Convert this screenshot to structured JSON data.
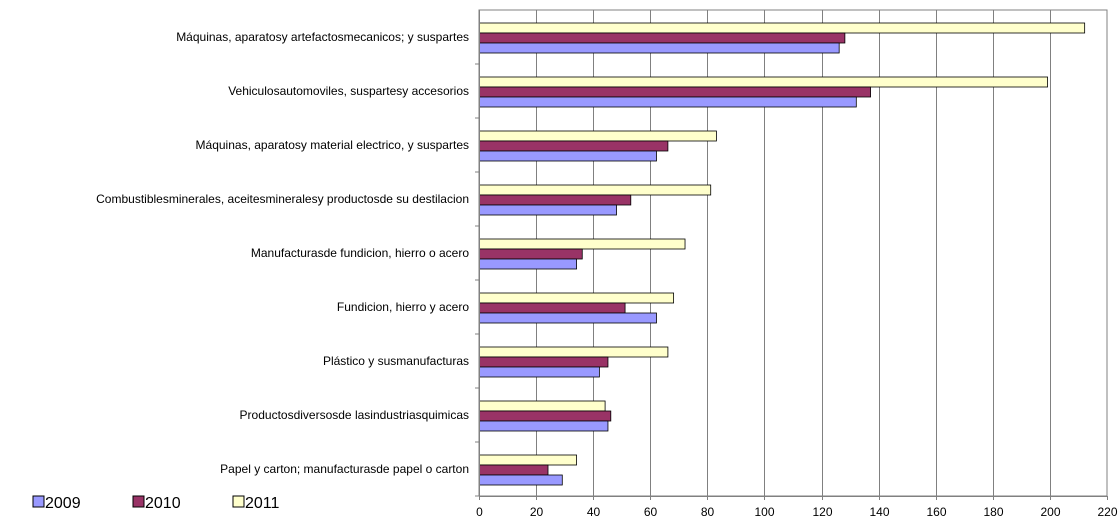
{
  "chart_data": {
    "type": "bar",
    "orientation": "horizontal",
    "categories": [
      "Máquinas, aparatosy artefactosmecanicos; y suspartes",
      "Vehiculosautomoviles, suspartesy accesorios",
      "Máquinas, aparatosy material electrico, y suspartes",
      "Combustiblesminerales, aceitesmineralesy productosde su destilacion",
      "Manufacturasde fundicion, hierro o acero",
      "Fundicion, hierro y acero",
      "Plástico y susmanufacturas",
      "Productosdiversosde lasindustriasquimicas",
      "Papel y carton; manufacturasde papel o carton"
    ],
    "series": [
      {
        "name": "2009",
        "color": "#9999ff",
        "values": [
          126,
          132,
          62,
          48,
          34,
          62,
          42,
          45,
          29
        ]
      },
      {
        "name": "2010",
        "color": "#993366",
        "values": [
          128,
          137,
          66,
          53,
          36,
          51,
          45,
          46,
          24
        ]
      },
      {
        "name": "2011",
        "color": "#ffffcc",
        "values": [
          212,
          199,
          83,
          81,
          72,
          68,
          66,
          44,
          34
        ]
      }
    ],
    "xlim": [
      0,
      220
    ],
    "xticks": [
      "0",
      "20",
      "40",
      "60",
      "80",
      "100",
      "120",
      "140",
      "160",
      "180",
      "200",
      "220"
    ],
    "grid": true,
    "legend_position": "bottom-left",
    "title": "",
    "xlabel": "",
    "ylabel": ""
  }
}
